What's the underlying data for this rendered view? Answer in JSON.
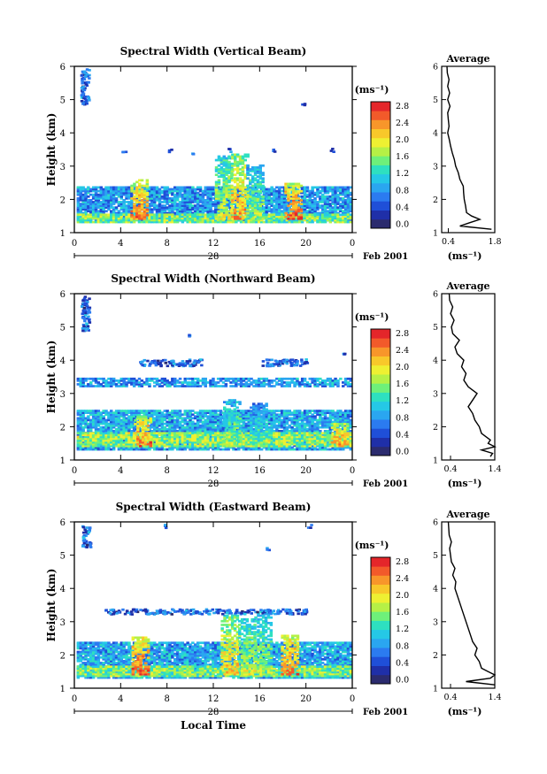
{
  "chart_data": [
    {
      "type": "heatmap",
      "title": "Spectral Width (Vertical Beam)",
      "xlabel": "",
      "ylabel": "Height (km)",
      "xlim": [
        0,
        24
      ],
      "ylim": [
        1,
        6
      ],
      "xticks": [
        "0",
        "4",
        "8",
        "12",
        "16",
        "20",
        "0"
      ],
      "yticks": [
        "1",
        "2",
        "3",
        "4",
        "5",
        "6"
      ],
      "date_day": "28",
      "date_label": "Feb 2001",
      "colorbar": {
        "unit": "(ms⁻¹)",
        "range": [
          0,
          3.0
        ],
        "ticks": [
          "0.0",
          "0.4",
          "0.8",
          "1.2",
          "1.6",
          "2.0",
          "2.4",
          "2.8"
        ]
      },
      "layers": [
        {
          "y_from": 1.35,
          "y_to": 2.35,
          "density": 0.88,
          "level": 0.9
        },
        {
          "y_from": 1.3,
          "y_to": 1.55,
          "density": 0.95,
          "level": 1.6
        }
      ],
      "plumes": [
        {
          "x": 5.5,
          "y_top": 2.6,
          "level": 2.6
        },
        {
          "x": 12.8,
          "y_top": 3.3,
          "level": 2.0
        },
        {
          "x": 14.2,
          "y_top": 3.35,
          "level": 2.4
        },
        {
          "x": 15.5,
          "y_top": 3.0,
          "level": 1.8
        },
        {
          "x": 18.8,
          "y_top": 2.5,
          "level": 2.7
        }
      ],
      "speckle": [
        {
          "x": [
            0.5,
            1.2
          ],
          "y": [
            4.8,
            5.9
          ]
        },
        {
          "x": 4,
          "y": 3.4
        },
        {
          "x": 8,
          "y": 3.4
        },
        {
          "x": 10,
          "y": 3.3
        },
        {
          "x": 13,
          "y": 3.4
        },
        {
          "x": 17,
          "y": 3.4
        },
        {
          "x": 19.5,
          "y": 4.8
        },
        {
          "x": 22,
          "y": 3.4
        }
      ],
      "profile": {
        "title": "Average",
        "xlabel": "(ms⁻¹)",
        "xticks": [
          "0.4",
          "1.8"
        ],
        "xlim": [
          0.2,
          1.8
        ],
        "ylim": [
          1,
          6
        ],
        "height": [
          1.1,
          1.2,
          1.3,
          1.4,
          1.5,
          1.6,
          1.8,
          2.0,
          2.2,
          2.4,
          2.6,
          2.8,
          3.0,
          3.2,
          3.4,
          3.6,
          3.8,
          4.0,
          4.2,
          4.4,
          4.6,
          4.8,
          5.0,
          5.2,
          5.4,
          5.6,
          5.8,
          6.0
        ],
        "width": [
          1.7,
          0.75,
          1.05,
          1.35,
          1.1,
          0.95,
          0.92,
          0.88,
          0.86,
          0.85,
          0.75,
          0.7,
          0.62,
          0.58,
          0.52,
          0.47,
          0.43,
          0.38,
          0.42,
          0.4,
          0.38,
          0.45,
          0.38,
          0.44,
          0.38,
          0.42,
          0.37,
          0.36
        ]
      }
    },
    {
      "type": "heatmap",
      "title": "Spectral Width (Northward Beam)",
      "xlabel": "",
      "ylabel": "Height (km)",
      "xlim": [
        0,
        24
      ],
      "ylim": [
        1,
        6
      ],
      "xticks": [
        "0",
        "4",
        "8",
        "12",
        "16",
        "20",
        "0"
      ],
      "yticks": [
        "1",
        "2",
        "3",
        "4",
        "5",
        "6"
      ],
      "date_day": "28",
      "date_label": "Feb 2001",
      "colorbar": {
        "unit": "(ms⁻¹)",
        "range": [
          0,
          3.0
        ],
        "ticks": [
          "0.0",
          "0.4",
          "0.8",
          "1.2",
          "1.6",
          "2.0",
          "2.4",
          "2.8"
        ]
      },
      "layers": [
        {
          "y_from": 1.3,
          "y_to": 2.5,
          "density": 0.9,
          "level": 1.0
        },
        {
          "y_from": 3.2,
          "y_to": 3.45,
          "density": 0.72,
          "level": 0.9
        },
        {
          "y_from": 1.4,
          "y_to": 1.8,
          "density": 0.95,
          "level": 1.7
        }
      ],
      "plumes": [
        {
          "x": 5.8,
          "y_top": 2.3,
          "level": 2.6
        },
        {
          "x": 13.5,
          "y_top": 2.8,
          "level": 1.8
        },
        {
          "x": 15.8,
          "y_top": 2.7,
          "level": 1.6
        },
        {
          "x": 22.8,
          "y_top": 2.1,
          "level": 2.5
        }
      ],
      "speckle": [
        {
          "x": [
            0.5,
            1.2
          ],
          "y": [
            4.8,
            5.9
          ]
        },
        {
          "x": [
            5.5,
            11
          ],
          "y": [
            3.8,
            4.0
          ]
        },
        {
          "x": [
            16,
            20
          ],
          "y": [
            3.8,
            4.0
          ]
        },
        {
          "x": 23,
          "y": 4.1
        },
        {
          "x": 9.5,
          "y": 4.7
        }
      ],
      "profile": {
        "title": "Average",
        "xlabel": "(ms⁻¹)",
        "xticks": [
          "0.4",
          "1.4"
        ],
        "xlim": [
          0.2,
          1.4
        ],
        "ylim": [
          1,
          6
        ],
        "height": [
          1.1,
          1.2,
          1.3,
          1.4,
          1.5,
          1.6,
          1.8,
          2.0,
          2.2,
          2.4,
          2.6,
          2.8,
          3.0,
          3.2,
          3.4,
          3.6,
          3.8,
          4.0,
          4.2,
          4.4,
          4.6,
          4.8,
          5.0,
          5.2,
          5.4,
          5.6,
          5.8,
          6.0
        ],
        "width": [
          1.3,
          1.35,
          1.1,
          1.4,
          1.25,
          1.3,
          1.1,
          1.05,
          0.95,
          0.9,
          0.8,
          0.9,
          1.0,
          0.8,
          0.7,
          0.75,
          0.65,
          0.7,
          0.55,
          0.5,
          0.6,
          0.45,
          0.42,
          0.48,
          0.4,
          0.45,
          0.38,
          0.37
        ]
      }
    },
    {
      "type": "heatmap",
      "title": "Spectral Width (Eastward Beam)",
      "xlabel": "Local Time",
      "ylabel": "Height (km)",
      "xlim": [
        0,
        24
      ],
      "ylim": [
        1,
        6
      ],
      "xticks": [
        "0",
        "4",
        "8",
        "12",
        "16",
        "20",
        "0"
      ],
      "yticks": [
        "1",
        "2",
        "3",
        "4",
        "5",
        "6"
      ],
      "date_day": "28",
      "date_label": "Feb 2001",
      "colorbar": {
        "unit": "(ms⁻¹)",
        "range": [
          0,
          3.0
        ],
        "ticks": [
          "0.0",
          "0.4",
          "0.8",
          "1.2",
          "1.6",
          "2.0",
          "2.4",
          "2.8"
        ]
      },
      "layers": [
        {
          "y_from": 1.3,
          "y_to": 2.4,
          "density": 0.9,
          "level": 1.0
        },
        {
          "y_from": 1.35,
          "y_to": 1.65,
          "density": 0.95,
          "level": 1.6
        }
      ],
      "plumes": [
        {
          "x": 5.6,
          "y_top": 2.55,
          "level": 2.7
        },
        {
          "x": 13.3,
          "y_top": 3.2,
          "level": 2.3
        },
        {
          "x": 14.8,
          "y_top": 3.1,
          "level": 2.0
        },
        {
          "x": 16.2,
          "y_top": 3.3,
          "level": 1.9
        },
        {
          "x": 18.5,
          "y_top": 2.6,
          "level": 2.6
        }
      ],
      "speckle": [
        {
          "x": [
            0.6,
            1.3
          ],
          "y": [
            5.2,
            5.85
          ]
        },
        {
          "x": [
            2.5,
            20
          ],
          "y": [
            3.2,
            3.35
          ]
        },
        {
          "x": 7.5,
          "y": 5.8
        },
        {
          "x": 16.5,
          "y": 5.1
        },
        {
          "x": 20,
          "y": 5.8
        }
      ],
      "profile": {
        "title": "Average",
        "xlabel": "(ms⁻¹)",
        "xticks": [
          "0.4",
          "1.4"
        ],
        "xlim": [
          0.2,
          1.4
        ],
        "ylim": [
          1,
          6
        ],
        "height": [
          1.1,
          1.2,
          1.3,
          1.4,
          1.5,
          1.6,
          1.8,
          2.0,
          2.2,
          2.4,
          2.6,
          2.8,
          3.0,
          3.2,
          3.4,
          3.6,
          3.8,
          4.0,
          4.2,
          4.4,
          4.6,
          4.8,
          5.0,
          5.2,
          5.4,
          5.6,
          5.8,
          6.0
        ],
        "width": [
          1.4,
          0.75,
          1.3,
          1.4,
          1.25,
          1.1,
          1.05,
          0.95,
          1.0,
          0.9,
          0.85,
          0.8,
          0.75,
          0.7,
          0.65,
          0.6,
          0.55,
          0.5,
          0.52,
          0.45,
          0.5,
          0.42,
          0.4,
          0.38,
          0.42,
          0.37,
          0.36,
          0.35
        ]
      }
    }
  ]
}
